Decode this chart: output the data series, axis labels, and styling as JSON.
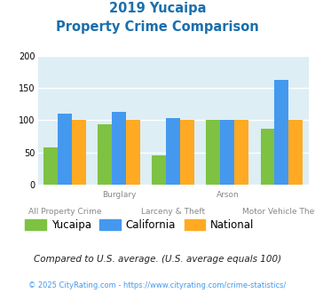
{
  "title_line1": "2019 Yucaipa",
  "title_line2": "Property Crime Comparison",
  "x_top_labels": [
    "",
    "Burglary",
    "",
    "Arson",
    ""
  ],
  "x_bottom_labels": [
    "All Property Crime",
    "",
    "Larceny & Theft",
    "",
    "Motor Vehicle Theft"
  ],
  "yucaipa": [
    58,
    93,
    45,
    100,
    87
  ],
  "california": [
    110,
    113,
    103,
    100,
    163
  ],
  "national": [
    100,
    100,
    100,
    100,
    100
  ],
  "color_yucaipa": "#7dc242",
  "color_california": "#4499ee",
  "color_national": "#ffaa22",
  "color_title": "#1a6fad",
  "color_bg": "#ddeef4",
  "ylim": [
    0,
    200
  ],
  "yticks": [
    0,
    50,
    100,
    150,
    200
  ],
  "legend_labels": [
    "Yucaipa",
    "California",
    "National"
  ],
  "footnote1": "Compared to U.S. average. (U.S. average equals 100)",
  "footnote2": "© 2025 CityRating.com - https://www.cityrating.com/crime-statistics/",
  "color_footnote1": "#222222",
  "color_footnote2": "#4499ee",
  "color_xticklabel": "#888888"
}
